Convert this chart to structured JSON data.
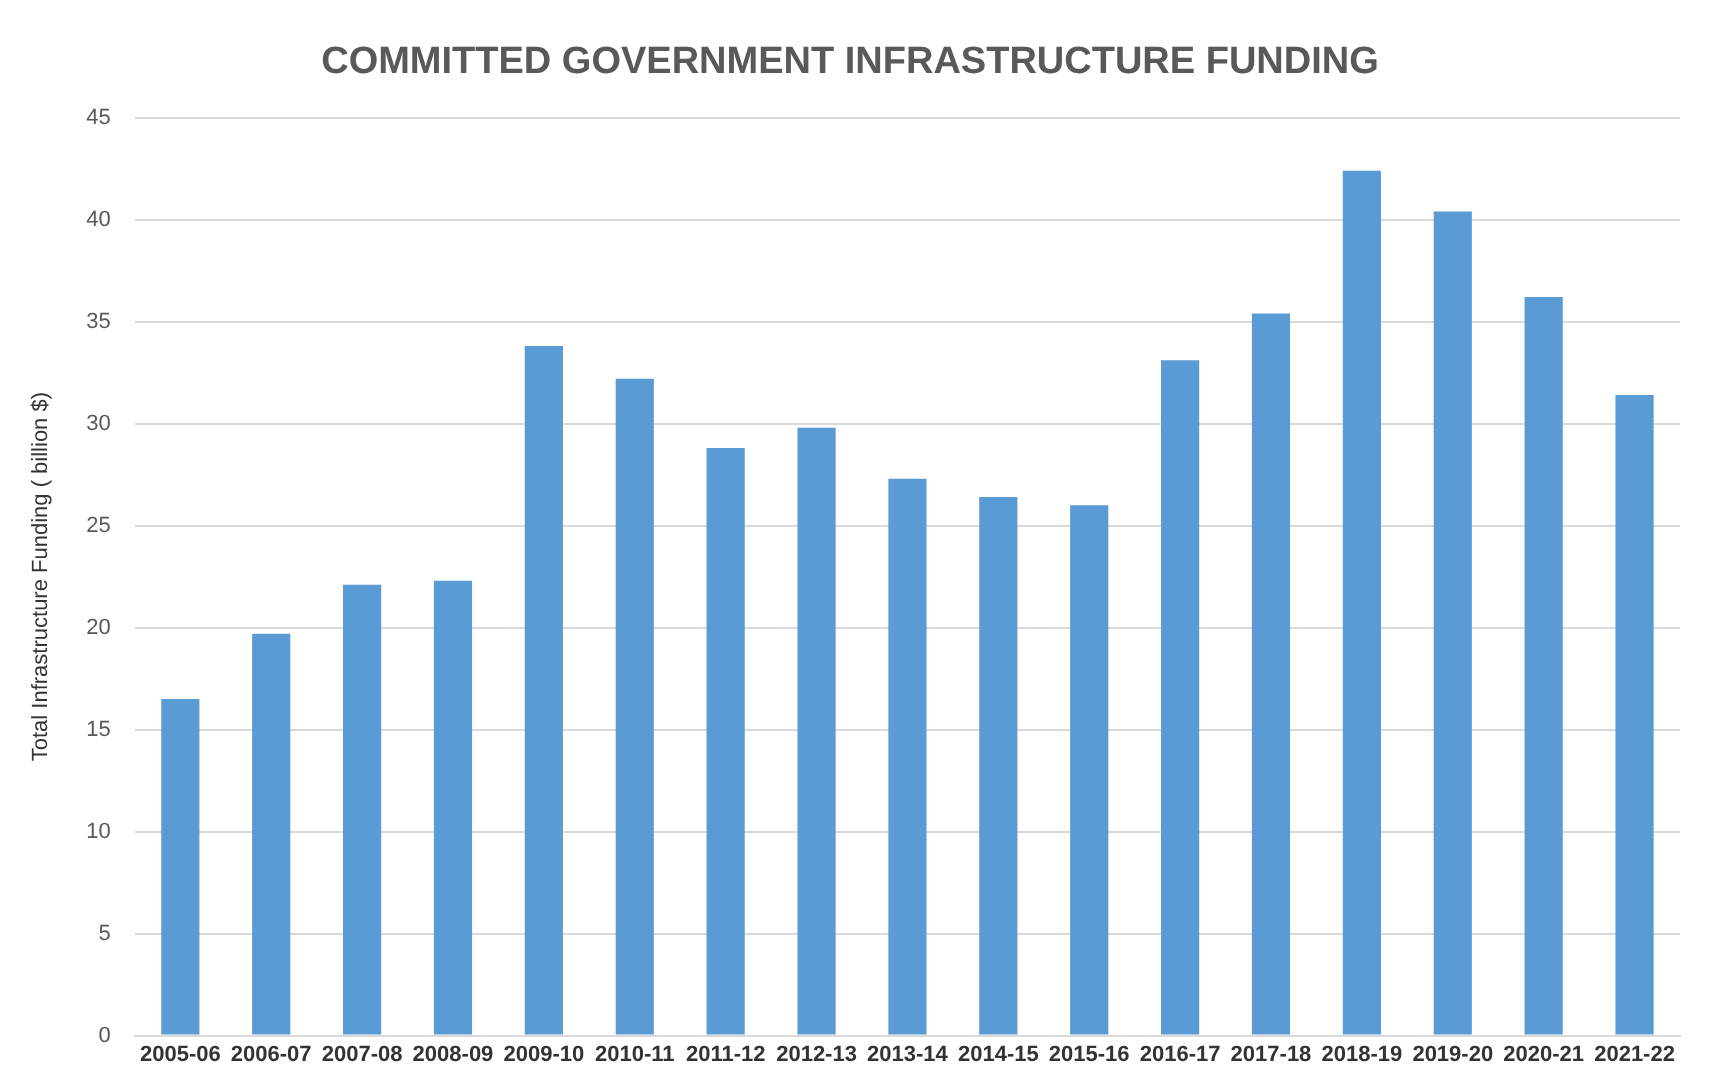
{
  "chart_data": {
    "type": "bar",
    "title": "COMMITTED GOVERNMENT INFRASTRUCTURE FUNDING",
    "ylabel": "Total Infrastructure Funding ( billion $)",
    "categories": [
      "2005-06",
      "2006-07",
      "2007-08",
      "2008-09",
      "2009-10",
      "2010-11",
      "2011-12",
      "2012-13",
      "2013-14",
      "2014-15",
      "2015-16",
      "2016-17",
      "2017-18",
      "2018-19",
      "2019-20",
      "2020-21",
      "2021-22"
    ],
    "values": [
      16.5,
      19.7,
      22.1,
      22.3,
      33.8,
      32.2,
      28.8,
      29.8,
      27.3,
      26.4,
      26.0,
      33.1,
      35.4,
      42.4,
      40.4,
      36.2,
      31.4
    ],
    "color": "#5b9bd5",
    "ylim": [
      0,
      45
    ],
    "yticks": [
      0,
      5,
      10,
      15,
      20,
      25,
      30,
      35,
      40,
      45
    ],
    "grid": "y",
    "legend": false
  }
}
